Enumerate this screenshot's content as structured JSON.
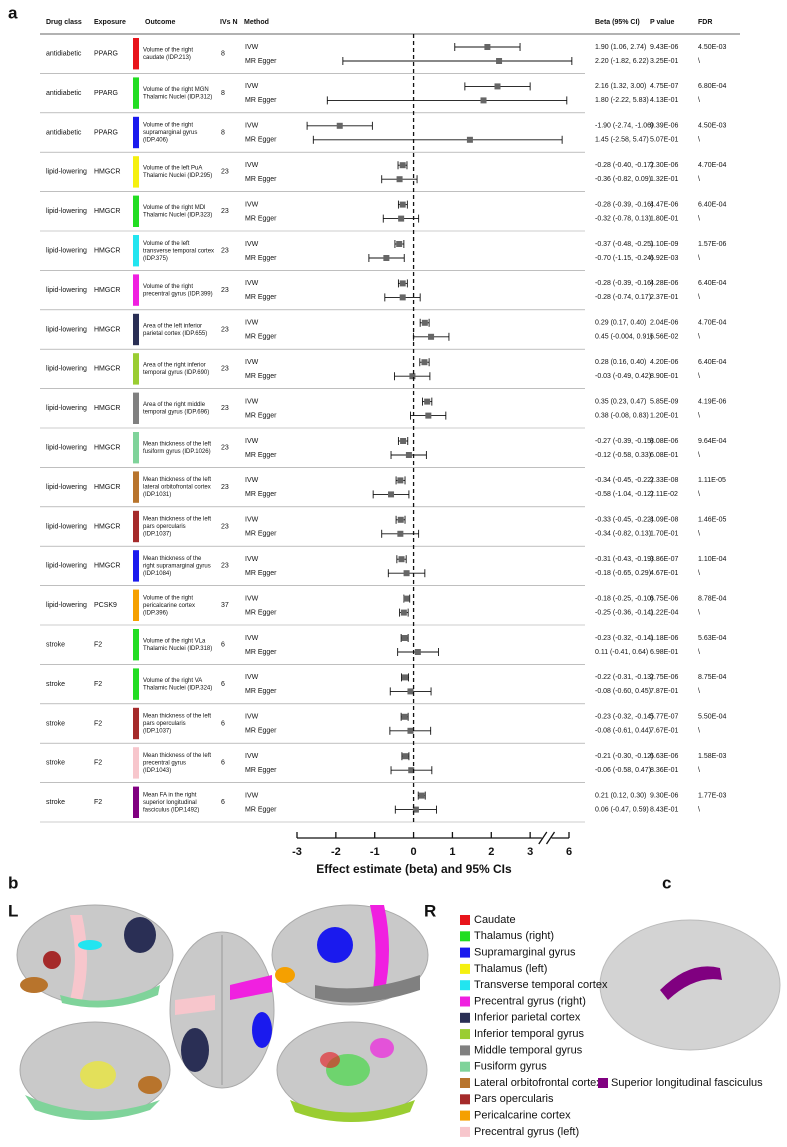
{
  "panel_labels": [
    "a",
    "b",
    "c"
  ],
  "chart_data": {
    "type": "forest",
    "columns": [
      "Drug class",
      "Exposure",
      "Outcome",
      "IVs N",
      "Method",
      "Beta (95% CI)",
      "P value",
      "FDR"
    ],
    "xlabel": "Effect estimate (beta) and 95% CIs",
    "xlim": [
      -3,
      6
    ],
    "xticks": [
      -3,
      -2,
      -1,
      0,
      1,
      2,
      3,
      6
    ],
    "broken_axis": true,
    "reference_line": 0,
    "marker_color": "#666666",
    "rows": [
      {
        "drug_class": "antidiabetic",
        "exposure": "PPARG",
        "outcome": [
          "Volume of the right",
          "caudate (IDP.213)"
        ],
        "color": "#e8141b",
        "ivs": 8,
        "methods": [
          {
            "name": "IVW",
            "beta": 1.9,
            "lower": 1.06,
            "upper": 2.74,
            "label": "1.90 (1.06, 2.74)",
            "p": "9.43E-06",
            "fdr": "4.50E-03"
          },
          {
            "name": "MR Egger",
            "beta": 2.2,
            "lower": -1.82,
            "upper": 6.22,
            "label": "2.20 (-1.82, 6.22)",
            "p": "3.25E-01",
            "fdr": "\\"
          }
        ]
      },
      {
        "drug_class": "antidiabetic",
        "exposure": "PPARG",
        "outcome": [
          "Volume of the right MGN",
          "Thalamic Nuclei (IDP.312)"
        ],
        "color": "#22dd22",
        "ivs": 8,
        "methods": [
          {
            "name": "IVW",
            "beta": 2.16,
            "lower": 1.32,
            "upper": 3.0,
            "label": "2.16 (1.32, 3.00)",
            "p": "4.75E-07",
            "fdr": "6.80E-04"
          },
          {
            "name": "MR Egger",
            "beta": 1.8,
            "lower": -2.22,
            "upper": 5.83,
            "label": "1.80 (-2.22, 5.83)",
            "p": "4.13E-01",
            "fdr": "\\"
          }
        ]
      },
      {
        "drug_class": "antidiabetic",
        "exposure": "PPARG",
        "outcome": [
          "Volume of the right",
          "supramarginal gyrus",
          "(IDP.406)"
        ],
        "color": "#1a1aee",
        "ivs": 8,
        "methods": [
          {
            "name": "IVW",
            "beta": -1.9,
            "lower": -2.74,
            "upper": -1.06,
            "label": "-1.90 (-2.74, -1.06)",
            "p": "9.39E-06",
            "fdr": "4.50E-03"
          },
          {
            "name": "MR Egger",
            "beta": 1.45,
            "lower": -2.58,
            "upper": 5.47,
            "label": "1.45 (-2.58, 5.47)",
            "p": "5.07E-01",
            "fdr": "\\"
          }
        ]
      },
      {
        "drug_class": "lipid-lowering",
        "exposure": "HMGCR",
        "outcome": [
          "Volume of the left PuA",
          "Thalamic Nuclei (IDP.295)"
        ],
        "color": "#f5f010",
        "ivs": 23,
        "methods": [
          {
            "name": "IVW",
            "beta": -0.28,
            "lower": -0.4,
            "upper": -0.17,
            "label": "-0.28 (-0.40, -0.17)",
            "p": "2.30E-06",
            "fdr": "4.70E-04"
          },
          {
            "name": "MR Egger",
            "beta": -0.36,
            "lower": -0.82,
            "upper": 0.09,
            "label": "-0.36 (-0.82, 0.09)",
            "p": "1.32E-01",
            "fdr": "\\"
          }
        ]
      },
      {
        "drug_class": "lipid-lowering",
        "exposure": "HMGCR",
        "outcome": [
          "Volume of the right MDl",
          "Thalamic Nuclei (IDP.323)"
        ],
        "color": "#22dd22",
        "ivs": 23,
        "methods": [
          {
            "name": "IVW",
            "beta": -0.28,
            "lower": -0.39,
            "upper": -0.16,
            "label": "-0.28 (-0.39, -0.16)",
            "p": "4.47E-06",
            "fdr": "6.40E-04"
          },
          {
            "name": "MR Egger",
            "beta": -0.32,
            "lower": -0.78,
            "upper": 0.13,
            "label": "-0.32 (-0.78, 0.13)",
            "p": "1.80E-01",
            "fdr": "\\"
          }
        ]
      },
      {
        "drug_class": "lipid-lowering",
        "exposure": "HMGCR",
        "outcome": [
          "Volume of the left",
          "transverse temporal cortex",
          "(IDP.375)"
        ],
        "color": "#22e5f0",
        "ivs": 23,
        "methods": [
          {
            "name": "IVW",
            "beta": -0.37,
            "lower": -0.48,
            "upper": -0.25,
            "label": "-0.37 (-0.48, -0.25)",
            "p": "1.10E-09",
            "fdr": "1.57E-06"
          },
          {
            "name": "MR Egger",
            "beta": -0.7,
            "lower": -1.15,
            "upper": -0.24,
            "label": "-0.70 (-1.15, -0.24)",
            "p": "6.92E-03",
            "fdr": "\\"
          }
        ]
      },
      {
        "drug_class": "lipid-lowering",
        "exposure": "HMGCR",
        "outcome": [
          "Volume of the right",
          "precentral gyrus (IDP.399)"
        ],
        "color": "#f020e0",
        "ivs": 23,
        "methods": [
          {
            "name": "IVW",
            "beta": -0.28,
            "lower": -0.39,
            "upper": -0.16,
            "label": "-0.28 (-0.39, -0.16)",
            "p": "4.28E-06",
            "fdr": "6.40E-04"
          },
          {
            "name": "MR Egger",
            "beta": -0.28,
            "lower": -0.74,
            "upper": 0.17,
            "label": "-0.28 (-0.74, 0.17)",
            "p": "2.37E-01",
            "fdr": "\\"
          }
        ]
      },
      {
        "drug_class": "lipid-lowering",
        "exposure": "HMGCR",
        "outcome": [
          "Area of the left inferior",
          "parietal cortex (IDP.655)"
        ],
        "color": "#2a2f55",
        "ivs": 23,
        "methods": [
          {
            "name": "IVW",
            "beta": 0.29,
            "lower": 0.17,
            "upper": 0.4,
            "label": "0.29 (0.17, 0.40)",
            "p": "2.04E-06",
            "fdr": "4.70E-04"
          },
          {
            "name": "MR Egger",
            "beta": 0.45,
            "lower": -0.004,
            "upper": 0.91,
            "label": "0.45 (-0.004, 0.91)",
            "p": "6.56E-02",
            "fdr": "\\"
          }
        ]
      },
      {
        "drug_class": "lipid-lowering",
        "exposure": "HMGCR",
        "outcome": [
          "Area of the right inferior",
          "temporal gyrus (IDP.690)"
        ],
        "color": "#9acd32",
        "ivs": 23,
        "methods": [
          {
            "name": "IVW",
            "beta": 0.28,
            "lower": 0.16,
            "upper": 0.4,
            "label": "0.28 (0.16, 0.40)",
            "p": "4.20E-06",
            "fdr": "6.40E-04"
          },
          {
            "name": "MR Egger",
            "beta": -0.03,
            "lower": -0.49,
            "upper": 0.42,
            "label": "-0.03 (-0.49, 0.42)",
            "p": "8.90E-01",
            "fdr": "\\"
          }
        ]
      },
      {
        "drug_class": "lipid-lowering",
        "exposure": "HMGCR",
        "outcome": [
          "Area of the right middle",
          "temporal gyrus (IDP.696)"
        ],
        "color": "#808080",
        "ivs": 23,
        "methods": [
          {
            "name": "IVW",
            "beta": 0.35,
            "lower": 0.23,
            "upper": 0.47,
            "label": "0.35 (0.23, 0.47)",
            "p": "5.85E-09",
            "fdr": "4.19E-06"
          },
          {
            "name": "MR Egger",
            "beta": 0.38,
            "lower": -0.08,
            "upper": 0.83,
            "label": "0.38 (-0.08, 0.83)",
            "p": "1.20E-01",
            "fdr": "\\"
          }
        ]
      },
      {
        "drug_class": "lipid-lowering",
        "exposure": "HMGCR",
        "outcome": [
          "Mean thickness of the left",
          "fusiform gyrus (IDP.1026)"
        ],
        "color": "#7fd39a",
        "ivs": 23,
        "methods": [
          {
            "name": "IVW",
            "beta": -0.27,
            "lower": -0.39,
            "upper": -0.15,
            "label": "-0.27 (-0.39, -0.15)",
            "p": "8.08E-06",
            "fdr": "9.64E-04"
          },
          {
            "name": "MR Egger",
            "beta": -0.12,
            "lower": -0.58,
            "upper": 0.33,
            "label": "-0.12 (-0.58, 0.33)",
            "p": "6.08E-01",
            "fdr": "\\"
          }
        ]
      },
      {
        "drug_class": "lipid-lowering",
        "exposure": "HMGCR",
        "outcome": [
          "Mean thickness of the left",
          "lateral orbitofrontal cortex",
          "(IDP.1031)"
        ],
        "color": "#b8742c",
        "ivs": 23,
        "methods": [
          {
            "name": "IVW",
            "beta": -0.34,
            "lower": -0.45,
            "upper": -0.22,
            "label": "-0.34 (-0.45, -0.22)",
            "p": "2.33E-08",
            "fdr": "1.11E-05"
          },
          {
            "name": "MR Egger",
            "beta": -0.58,
            "lower": -1.04,
            "upper": -0.12,
            "label": "-0.58 (-1.04, -0.12)",
            "p": "2.11E-02",
            "fdr": "\\"
          }
        ]
      },
      {
        "drug_class": "lipid-lowering",
        "exposure": "HMGCR",
        "outcome": [
          "Mean thickness of the left",
          "pars opercularis",
          "(IDP.1037)"
        ],
        "color": "#a52a2a",
        "ivs": 23,
        "methods": [
          {
            "name": "IVW",
            "beta": -0.33,
            "lower": -0.45,
            "upper": -0.22,
            "label": "-0.33 (-0.45, -0.22)",
            "p": "4.09E-08",
            "fdr": "1.46E-05"
          },
          {
            "name": "MR Egger",
            "beta": -0.34,
            "lower": -0.82,
            "upper": 0.13,
            "label": "-0.34 (-0.82, 0.13)",
            "p": "1.70E-01",
            "fdr": "\\"
          }
        ]
      },
      {
        "drug_class": "lipid-lowering",
        "exposure": "HMGCR",
        "outcome": [
          "Mean thickness of the",
          "right supramarginal gyrus",
          "(IDP.1084)"
        ],
        "color": "#1a1aee",
        "ivs": 23,
        "methods": [
          {
            "name": "IVW",
            "beta": -0.31,
            "lower": -0.43,
            "upper": -0.19,
            "label": "-0.31 (-0.43, -0.19)",
            "p": "3.86E-07",
            "fdr": "1.10E-04"
          },
          {
            "name": "MR Egger",
            "beta": -0.18,
            "lower": -0.65,
            "upper": 0.29,
            "label": "-0.18 (-0.65, 0.29)",
            "p": "4.67E-01",
            "fdr": "\\"
          }
        ]
      },
      {
        "drug_class": "lipid-lowering",
        "exposure": "PCSK9",
        "outcome": [
          "Volume of the right",
          "pericalcarine cortex",
          "(IDP.396)"
        ],
        "color": "#f5a000",
        "ivs": 37,
        "methods": [
          {
            "name": "IVW",
            "beta": -0.18,
            "lower": -0.25,
            "upper": -0.1,
            "label": "-0.18 (-0.25, -0.10)",
            "p": "6.75E-06",
            "fdr": "8.78E-04"
          },
          {
            "name": "MR Egger",
            "beta": -0.25,
            "lower": -0.36,
            "upper": -0.14,
            "label": "-0.25 (-0.36, -0.14)",
            "p": "1.22E-04",
            "fdr": "\\"
          }
        ]
      },
      {
        "drug_class": "stroke",
        "exposure": "F2",
        "outcome": [
          "Volume of the right VLa",
          "Thalamic Nuclei (IDP.318)"
        ],
        "color": "#22dd22",
        "ivs": 6,
        "methods": [
          {
            "name": "IVW",
            "beta": -0.23,
            "lower": -0.32,
            "upper": -0.14,
            "label": "-0.23 (-0.32, -0.14)",
            "p": "1.18E-06",
            "fdr": "5.63E-04"
          },
          {
            "name": "MR Egger",
            "beta": 0.11,
            "lower": -0.41,
            "upper": 0.64,
            "label": "0.11 (-0.41, 0.64)",
            "p": "6.98E-01",
            "fdr": "\\"
          }
        ]
      },
      {
        "drug_class": "stroke",
        "exposure": "F2",
        "outcome": [
          "Volume of the right VA",
          "Thalamic Nuclei (IDP.324)"
        ],
        "color": "#22dd22",
        "ivs": 6,
        "methods": [
          {
            "name": "IVW",
            "beta": -0.22,
            "lower": -0.31,
            "upper": -0.13,
            "label": "-0.22 (-0.31, -0.13)",
            "p": "2.75E-06",
            "fdr": "8.75E-04"
          },
          {
            "name": "MR Egger",
            "beta": -0.08,
            "lower": -0.6,
            "upper": 0.45,
            "label": "-0.08 (-0.60, 0.45)",
            "p": "7.87E-01",
            "fdr": "\\"
          }
        ]
      },
      {
        "drug_class": "stroke",
        "exposure": "F2",
        "outcome": [
          "Mean thickness of the left",
          "pars opercularis",
          "(IDP.1037)"
        ],
        "color": "#a52a2a",
        "ivs": 6,
        "methods": [
          {
            "name": "IVW",
            "beta": -0.23,
            "lower": -0.32,
            "upper": -0.14,
            "label": "-0.23 (-0.32, -0.14)",
            "p": "5.77E-07",
            "fdr": "5.50E-04"
          },
          {
            "name": "MR Egger",
            "beta": -0.08,
            "lower": -0.61,
            "upper": 0.44,
            "label": "-0.08 (-0.61, 0.44)",
            "p": "7.67E-01",
            "fdr": "\\"
          }
        ]
      },
      {
        "drug_class": "stroke",
        "exposure": "F2",
        "outcome": [
          "Mean thickness of the left",
          "precentral gyrus",
          "(IDP.1043)"
        ],
        "color": "#f7c6cc",
        "ivs": 6,
        "methods": [
          {
            "name": "IVW",
            "beta": -0.21,
            "lower": -0.3,
            "upper": -0.12,
            "label": "-0.21 (-0.30, -0.12)",
            "p": "6.63E-06",
            "fdr": "1.58E-03"
          },
          {
            "name": "MR Egger",
            "beta": -0.06,
            "lower": -0.58,
            "upper": 0.47,
            "label": "-0.06 (-0.58, 0.47)",
            "p": "8.36E-01",
            "fdr": "\\"
          }
        ]
      },
      {
        "drug_class": "stroke",
        "exposure": "F2",
        "outcome": [
          "Mean FA in the right",
          "superior longitudinal",
          "fasciculus (IDP.1492)"
        ],
        "color": "#800080",
        "ivs": 6,
        "methods": [
          {
            "name": "IVW",
            "beta": 0.21,
            "lower": 0.12,
            "upper": 0.3,
            "label": "0.21 (0.12, 0.30)",
            "p": "9.30E-06",
            "fdr": "1.77E-03"
          },
          {
            "name": "MR Egger",
            "beta": 0.06,
            "lower": -0.47,
            "upper": 0.59,
            "label": "0.06 (-0.47, 0.59)",
            "p": "8.43E-01",
            "fdr": "\\"
          }
        ]
      }
    ]
  },
  "brain": {
    "hemisphere_labels": [
      "L",
      "R"
    ],
    "legend": [
      {
        "name": "Caudate",
        "color": "#e8141b"
      },
      {
        "name": "Thalamus (right)",
        "color": "#22dd22"
      },
      {
        "name": "Supramarginal gyrus",
        "color": "#1a1aee"
      },
      {
        "name": "Thalamus (left)",
        "color": "#f5f010"
      },
      {
        "name": "Transverse temporal cortex",
        "color": "#22e5f0"
      },
      {
        "name": "Precentral gyrus (right)",
        "color": "#f020e0"
      },
      {
        "name": "Inferior parietal cortex",
        "color": "#2a2f55"
      },
      {
        "name": "Inferior temporal gyrus",
        "color": "#9acd32"
      },
      {
        "name": "Middle temporal gyrus",
        "color": "#808080"
      },
      {
        "name": "Fusiform gyrus",
        "color": "#7fd39a"
      },
      {
        "name": "Lateral orbitofrontal cortex",
        "color": "#b8742c"
      },
      {
        "name": "Pars opercularis",
        "color": "#a52a2a"
      },
      {
        "name": "Pericalcarine cortex",
        "color": "#f5a000"
      },
      {
        "name": "Precentral gyrus (left)",
        "color": "#f7c6cc"
      }
    ],
    "tract_legend": {
      "name": "Superior longitudinal fasciculus",
      "color": "#800080"
    }
  }
}
